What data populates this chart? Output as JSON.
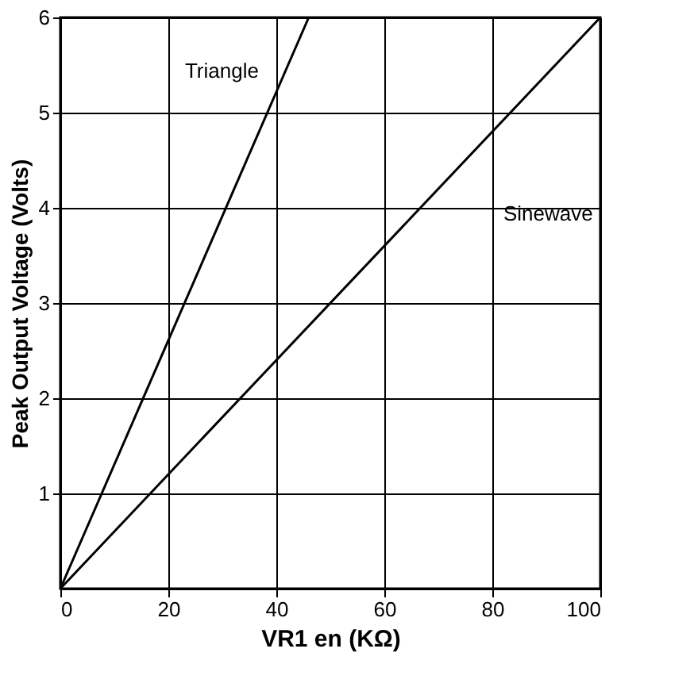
{
  "chart_data": {
    "type": "line",
    "xlabel": "VR1 en (KΩ)",
    "ylabel": "Peak Output Voltage (Volts)",
    "xlim": [
      0,
      100
    ],
    "xticks": [
      0,
      20,
      40,
      60,
      80,
      100
    ],
    "ylim": [
      0,
      6
    ],
    "yticks": [
      1,
      2,
      3,
      4,
      5,
      6
    ],
    "grid": true,
    "marker": "none",
    "line_style": "solid",
    "series": [
      {
        "name": "Triangle",
        "color": "#000000",
        "x": [
          0,
          46
        ],
        "values": [
          0,
          6
        ]
      },
      {
        "name": "Sinewave",
        "color": "#000000",
        "x": [
          0,
          100
        ],
        "values": [
          0,
          6
        ]
      }
    ]
  }
}
